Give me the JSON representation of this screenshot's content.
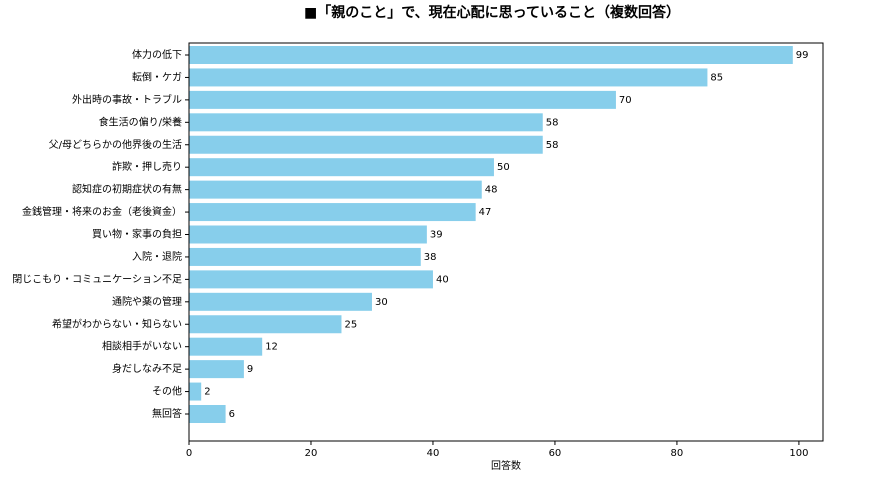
{
  "chart_data": {
    "type": "barh",
    "title": "■「親のこと」で、現在心配に思っていること（複数回答）",
    "xlabel": "回答数",
    "categories": [
      "体力の低下",
      "転倒・ケガ",
      "外出時の事故・トラブル",
      "食生活の偏り/栄養",
      "父/母どちらかの他界後の生活",
      "詐欺・押し売り",
      "認知症の初期症状の有無",
      "金銭管理・将来のお金（老後資金）",
      "買い物・家事の負担",
      "入院・退院",
      "閉じこもり・コミュニケーション不足",
      "通院や薬の管理",
      "希望がわからない・知らない",
      "相談相手がいない",
      "身だしなみ不足",
      "その他",
      "無回答"
    ],
    "values": [
      99,
      85,
      70,
      58,
      58,
      50,
      48,
      47,
      39,
      38,
      40,
      30,
      25,
      12,
      9,
      2,
      6
    ],
    "color": "#87ceeb",
    "xlim": [
      0,
      103.95
    ],
    "xticks": [
      0,
      20,
      40,
      60,
      80,
      100
    ],
    "grid": false
  }
}
